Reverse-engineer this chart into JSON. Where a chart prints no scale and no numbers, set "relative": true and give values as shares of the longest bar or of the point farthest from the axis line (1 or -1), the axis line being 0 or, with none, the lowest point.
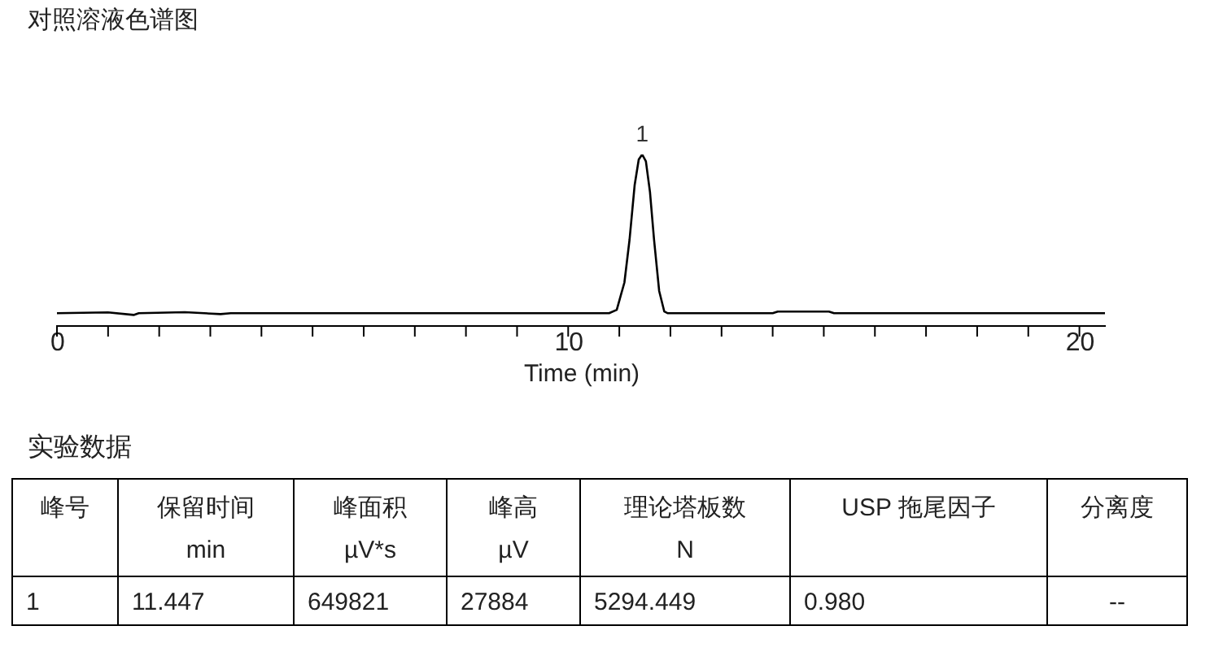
{
  "chart_data": {
    "type": "line",
    "title": "对照溶液色谱图",
    "xlabel": "Time (min)",
    "relative": true,
    "grid": false,
    "marker": "none",
    "line_style": "solid",
    "xlim": [
      0,
      20.5
    ],
    "xticks": [
      0,
      {
        "value": 1,
        "label": null
      },
      {
        "value": 2,
        "label": null
      },
      {
        "value": 3,
        "label": null
      },
      {
        "value": 4,
        "label": null
      },
      {
        "value": 5,
        "label": null
      },
      {
        "value": 6,
        "label": null
      },
      {
        "value": 7,
        "label": null
      },
      {
        "value": 8,
        "label": null
      },
      {
        "value": 9,
        "label": null
      },
      10,
      {
        "value": 11,
        "label": null
      },
      {
        "value": 12,
        "label": null
      },
      {
        "value": 13,
        "label": null
      },
      {
        "value": 14,
        "label": null
      },
      {
        "value": 15,
        "label": null
      },
      {
        "value": 16,
        "label": null
      },
      {
        "value": 17,
        "label": null
      },
      {
        "value": 18,
        "label": null
      },
      {
        "value": 19,
        "label": null
      },
      20
    ],
    "x": [
      0,
      1.0,
      1.5,
      1.6,
      2.5,
      3.2,
      3.4,
      10.8,
      10.95,
      11.1,
      11.2,
      11.3,
      11.38,
      11.447,
      11.52,
      11.6,
      11.68,
      11.78,
      11.88,
      11.95,
      14.0,
      14.1,
      15.1,
      15.2,
      20.5
    ],
    "series": [
      {
        "color": "#000000",
        "values": [
          0.07,
          0.075,
          0.06,
          0.07,
          0.076,
          0.065,
          0.07,
          0.07,
          0.09,
          0.25,
          0.5,
          0.82,
          0.97,
          1,
          0.96,
          0.78,
          0.5,
          0.2,
          0.08,
          0.07,
          0.07,
          0.08,
          0.08,
          0.07,
          0.07
        ]
      }
    ],
    "annotations": [
      {
        "text": "1",
        "x": 11.447,
        "y": 1
      },
      "实验数据",
      "峰号",
      "保留时间\nmin",
      "峰面积\nµV*s",
      "峰高\nµV",
      "理论塔板数\nN",
      "USP 拖尾因子",
      "分离度",
      "1",
      "11.447",
      "649821",
      "27884",
      "5294.449",
      "0.980",
      "--"
    ]
  }
}
